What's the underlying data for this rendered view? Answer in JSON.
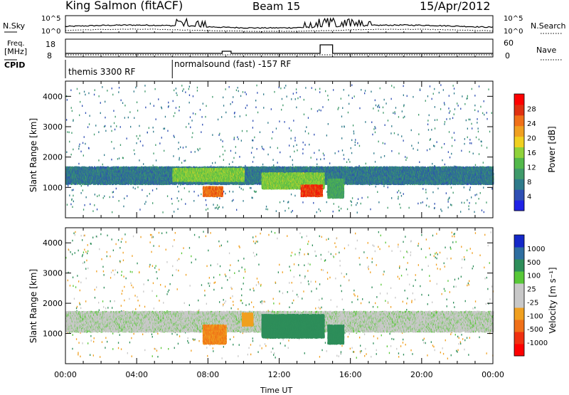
{
  "header": {
    "station": "King Salmon (fitACF)",
    "beam": "Beam 15",
    "date": "15/Apr/2012"
  },
  "summary": {
    "nsky_label": "N.Sky",
    "nsky_ticks": [
      "10^5",
      "10^0"
    ],
    "nsearch_label": "N.Search",
    "nsearch_ticks": [
      "10^5",
      "10^0"
    ],
    "freq_label_1": "Freq.",
    "freq_label_2": "[MHz]",
    "freq_ticks": [
      "18",
      "8"
    ],
    "nave_label": "Nave",
    "nave_ticks": [
      "60",
      "0"
    ],
    "cpid_label": "CPID",
    "cpid_segments": [
      {
        "name": "themis 3300 RF",
        "start_hour": 0
      },
      {
        "name": "normalsound (fast) -157 RF",
        "start_hour": 6
      }
    ]
  },
  "colors": {
    "power_scale": [
      "#1f22e6",
      "#2f4fb4",
      "#2e7a8a",
      "#3f9a6a",
      "#52b84a",
      "#8fd23a",
      "#f0d020",
      "#f0a020",
      "#f07018",
      "#e03010",
      "#ff0000"
    ],
    "velocity_scale": [
      "#1428c8",
      "#2e6ea0",
      "#2e8e5a",
      "#58c838",
      "#c8c8c8",
      "#c8c8c8",
      "#f0a020",
      "#f07018",
      "#f03010",
      "#ff0000"
    ]
  },
  "chart_data": [
    {
      "type": "heatmap",
      "panel": "power",
      "xlabel": "",
      "ylabel": "Slant Range [km]",
      "xlim": [
        0,
        24
      ],
      "ylim": [
        0,
        4500
      ],
      "yticks": [
        "1000",
        "2000",
        "3000",
        "4000"
      ],
      "colorbar_label": "Power [dB]",
      "colorbar_ticks": [
        "4",
        "8",
        "12",
        "16",
        "20",
        "24",
        "28"
      ],
      "features": [
        {
          "hours": [
            0,
            24
          ],
          "range_km": [
            1150,
            1700
          ],
          "level_db": 6
        },
        {
          "hours": [
            6,
            10
          ],
          "range_km": [
            1250,
            1650
          ],
          "level_db": 14
        },
        {
          "hours": [
            7.7,
            8.8
          ],
          "range_km": [
            750,
            1050
          ],
          "level_db": 24
        },
        {
          "hours": [
            11,
            14.5
          ],
          "range_km": [
            1000,
            1500
          ],
          "level_db": 14
        },
        {
          "hours": [
            13.2,
            14.4
          ],
          "range_km": [
            750,
            1100
          ],
          "level_db": 27
        },
        {
          "hours": [
            14.7,
            15.6
          ],
          "range_km": [
            700,
            1300
          ],
          "level_db": 10
        }
      ]
    },
    {
      "type": "heatmap",
      "panel": "velocity",
      "xlabel": "Time UT",
      "ylabel": "Slant Range [km]",
      "xlim": [
        0,
        24
      ],
      "ylim": [
        0,
        4500
      ],
      "xticks": [
        "00:00",
        "04:00",
        "08:00",
        "12:00",
        "16:00",
        "20:00",
        "00:00"
      ],
      "yticks": [
        "1000",
        "2000",
        "3000",
        "4000"
      ],
      "colorbar_label": "Velocity [m s⁻¹]",
      "colorbar_ticks": [
        "1000",
        "500",
        "100",
        "25",
        "-25",
        "-100",
        "-500",
        "-1000"
      ],
      "features": [
        {
          "hours": [
            0,
            24
          ],
          "range_km": [
            1100,
            1750
          ],
          "velocity_ms": 0
        },
        {
          "hours": [
            7.7,
            9.0
          ],
          "range_km": [
            700,
            1300
          ],
          "velocity_ms": -300
        },
        {
          "hours": [
            9.9,
            10.5
          ],
          "range_km": [
            1300,
            1700
          ],
          "velocity_ms": -150
        },
        {
          "hours": [
            11,
            14.5
          ],
          "range_km": [
            900,
            1650
          ],
          "velocity_ms": 150
        },
        {
          "hours": [
            14.7,
            15.6
          ],
          "range_km": [
            700,
            1300
          ],
          "velocity_ms": 150
        }
      ]
    }
  ]
}
